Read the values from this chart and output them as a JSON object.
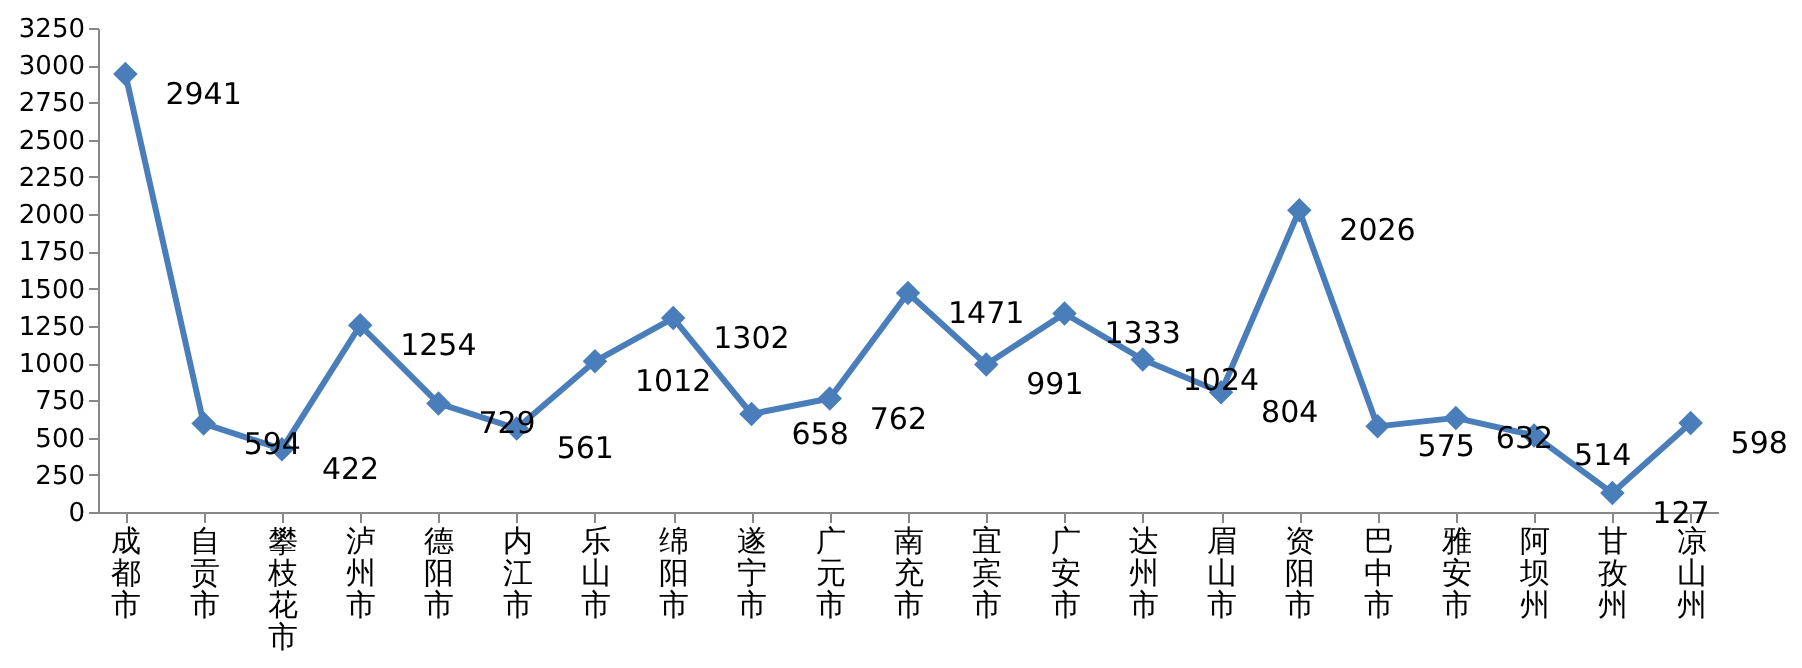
{
  "chart_data": {
    "type": "line",
    "categories": [
      "成都市",
      "自贡市",
      "攀枝花市",
      "泸州市",
      "德阳市",
      "内江市",
      "乐山市",
      "绵阳市",
      "遂宁市",
      "广元市",
      "南充市",
      "宜宾市",
      "广安市",
      "达州市",
      "眉山市",
      "资阳市",
      "巴中市",
      "雅安市",
      "阿坝州",
      "甘孜州",
      "凉山州"
    ],
    "series": [
      {
        "color": "#4a7ebb",
        "values": [
          2941,
          594,
          422,
          1254,
          729,
          561,
          1012,
          1302,
          658,
          762,
          1471,
          991,
          1333,
          1024,
          804,
          2026,
          575,
          632,
          514,
          127,
          598
        ]
      }
    ],
    "ylim": [
      0,
      3250
    ],
    "yticks": [
      0,
      250,
      500,
      750,
      1000,
      1250,
      1500,
      1750,
      2000,
      2250,
      2500,
      2750,
      3000,
      3250
    ],
    "marker": "diamond",
    "line_style": "solid",
    "data_labels": true,
    "grid": false,
    "legend": false
  }
}
